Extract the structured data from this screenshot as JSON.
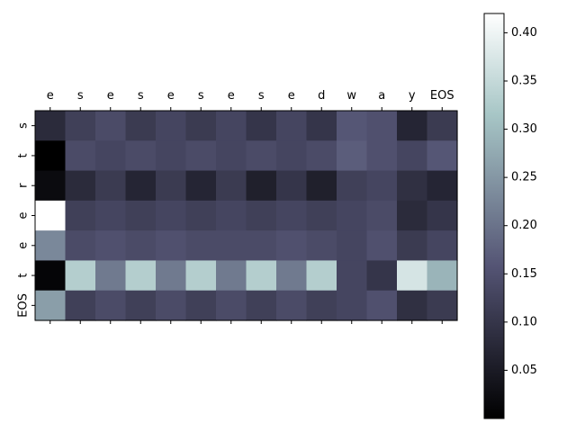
{
  "chart_data": {
    "type": "heatmap",
    "x_labels": [
      "e",
      "s",
      "e",
      "s",
      "e",
      "s",
      "e",
      "s",
      "e",
      "d",
      "w",
      "a",
      "y",
      "EOS"
    ],
    "y_labels": [
      "s",
      "t",
      "r",
      "e",
      "e",
      "t",
      "EOS"
    ],
    "values": [
      [
        0.08,
        0.12,
        0.14,
        0.11,
        0.13,
        0.11,
        0.13,
        0.1,
        0.13,
        0.1,
        0.16,
        0.15,
        0.07,
        0.11
      ],
      [
        0.0,
        0.14,
        0.13,
        0.14,
        0.13,
        0.14,
        0.13,
        0.14,
        0.13,
        0.14,
        0.17,
        0.15,
        0.13,
        0.16
      ],
      [
        0.02,
        0.08,
        0.11,
        0.07,
        0.11,
        0.07,
        0.11,
        0.06,
        0.1,
        0.06,
        0.12,
        0.13,
        0.09,
        0.07
      ],
      [
        0.42,
        0.12,
        0.13,
        0.12,
        0.13,
        0.12,
        0.13,
        0.12,
        0.13,
        0.12,
        0.13,
        0.14,
        0.08,
        0.1
      ],
      [
        0.23,
        0.14,
        0.15,
        0.14,
        0.15,
        0.14,
        0.14,
        0.14,
        0.15,
        0.14,
        0.13,
        0.15,
        0.11,
        0.13
      ],
      [
        0.01,
        0.33,
        0.21,
        0.33,
        0.21,
        0.33,
        0.21,
        0.33,
        0.21,
        0.33,
        0.13,
        0.1,
        0.37,
        0.29
      ],
      [
        0.26,
        0.12,
        0.14,
        0.12,
        0.14,
        0.12,
        0.14,
        0.12,
        0.14,
        0.12,
        0.13,
        0.15,
        0.09,
        0.11
      ]
    ],
    "colormap": "bone",
    "colorbar": {
      "ticks": [
        "0.05",
        "0.10",
        "0.15",
        "0.20",
        "0.25",
        "0.30",
        "0.35",
        "0.40"
      ],
      "range": [
        0.0,
        0.42
      ]
    },
    "x_axis_position": "top"
  }
}
